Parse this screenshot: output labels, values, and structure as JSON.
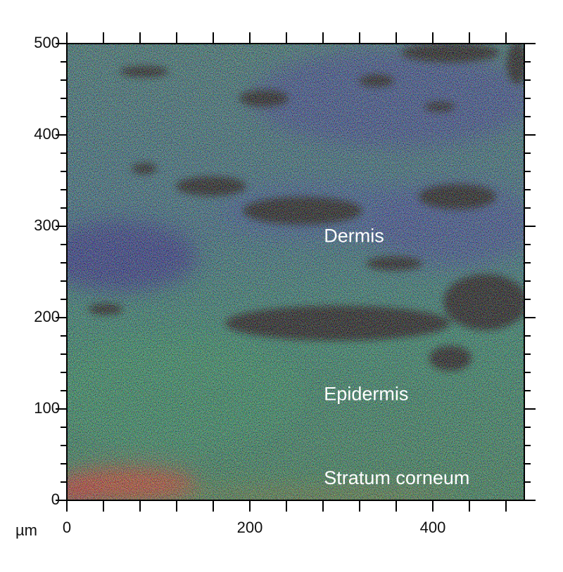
{
  "chart_data": {
    "type": "image",
    "x_label": "µm",
    "xlim": [
      0,
      500
    ],
    "ylim": [
      0,
      500
    ],
    "xticks": [
      0,
      200,
      400
    ],
    "yticks": [
      0,
      100,
      200,
      300,
      400,
      500
    ],
    "xminorticks": [
      40,
      80,
      120,
      160,
      240,
      280,
      320,
      360,
      440,
      480
    ],
    "yminorticks": [
      20,
      40,
      60,
      80,
      120,
      140,
      160,
      180,
      220,
      240,
      260,
      280,
      320,
      340,
      360,
      380,
      420,
      440,
      460,
      480
    ],
    "annotations": [
      {
        "text": "Dermis",
        "x": 281,
        "y": 288
      },
      {
        "text": "Epidermis",
        "x": 281,
        "y": 115
      },
      {
        "text": "Stratum corneum",
        "x": 281,
        "y": 23
      }
    ]
  }
}
